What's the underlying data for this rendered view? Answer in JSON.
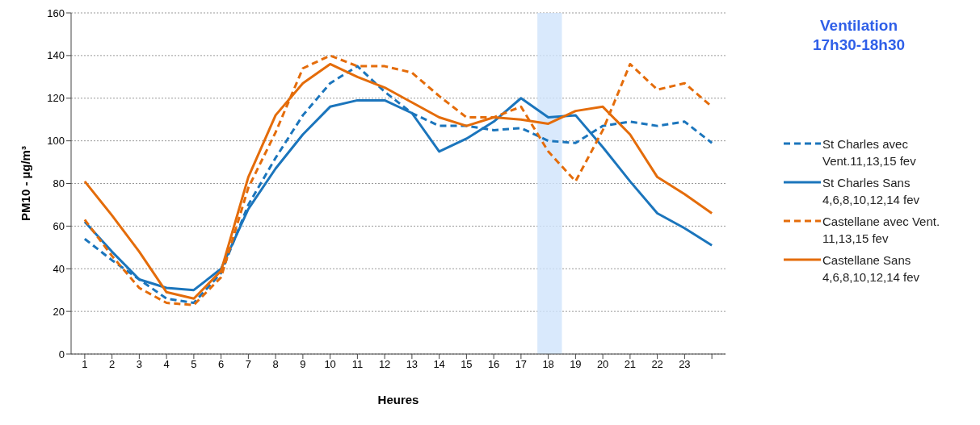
{
  "chart_data": {
    "type": "line",
    "title": "Ventilation 17h30-18h30",
    "xlabel": "Heures",
    "ylabel": "PM10 - µg/m³",
    "x": [
      1,
      2,
      3,
      4,
      5,
      6,
      7,
      8,
      9,
      10,
      11,
      12,
      13,
      14,
      15,
      16,
      17,
      18,
      19,
      20,
      21,
      22,
      23,
      24
    ],
    "xlim": [
      0.5,
      24.5
    ],
    "xticks": [
      1,
      2,
      3,
      4,
      5,
      6,
      7,
      8,
      9,
      10,
      11,
      12,
      13,
      14,
      15,
      16,
      17,
      18,
      19,
      20,
      21,
      22,
      23,
      {
        "value": 24,
        "label": null
      }
    ],
    "ylim": [
      0,
      160
    ],
    "yticks": [
      0,
      20,
      40,
      60,
      80,
      100,
      120,
      140,
      160
    ],
    "grid": "y",
    "legend": "right",
    "marker": "none",
    "bands": [
      {
        "axis": "x",
        "from": 17.6,
        "to": 18.5,
        "color": "#cfe4fb"
      }
    ],
    "series": [
      {
        "name": "St Charles avec Vent.11,13,15 fev",
        "color": "#1b75bc",
        "line_style": "dashed",
        "values": [
          54,
          44,
          35,
          26,
          24,
          38,
          70,
          92,
          112,
          127,
          135,
          123,
          113,
          107,
          107,
          105,
          106,
          100,
          99,
          107,
          109,
          107,
          109,
          99
        ]
      },
      {
        "name": "St Charles Sans 4,6,8,10,12,14 fev",
        "color": "#1b75bc",
        "line_style": "solid",
        "values": [
          62,
          48,
          35,
          31,
          30,
          40,
          68,
          87,
          103,
          116,
          119,
          119,
          113,
          95,
          101,
          109,
          120,
          111,
          112,
          97,
          81,
          66,
          59,
          51
        ]
      },
      {
        "name": "Castellane avec Vent. 11,13,15 fev",
        "color": "#e46c0a",
        "line_style": "dashed",
        "values": [
          63,
          46,
          31,
          24,
          23,
          36,
          78,
          104,
          134,
          140,
          135,
          135,
          132,
          121,
          111,
          111,
          116,
          95,
          81,
          105,
          136,
          124,
          127,
          116
        ]
      },
      {
        "name": "Castellane Sans 4,6,8,10,12,14 fev",
        "color": "#e46c0a",
        "line_style": "solid",
        "values": [
          81,
          65,
          48,
          29,
          26,
          39,
          83,
          112,
          127,
          136,
          130,
          125,
          118,
          111,
          107,
          111,
          110,
          108,
          114,
          116,
          103,
          83,
          75,
          66
        ]
      }
    ]
  }
}
